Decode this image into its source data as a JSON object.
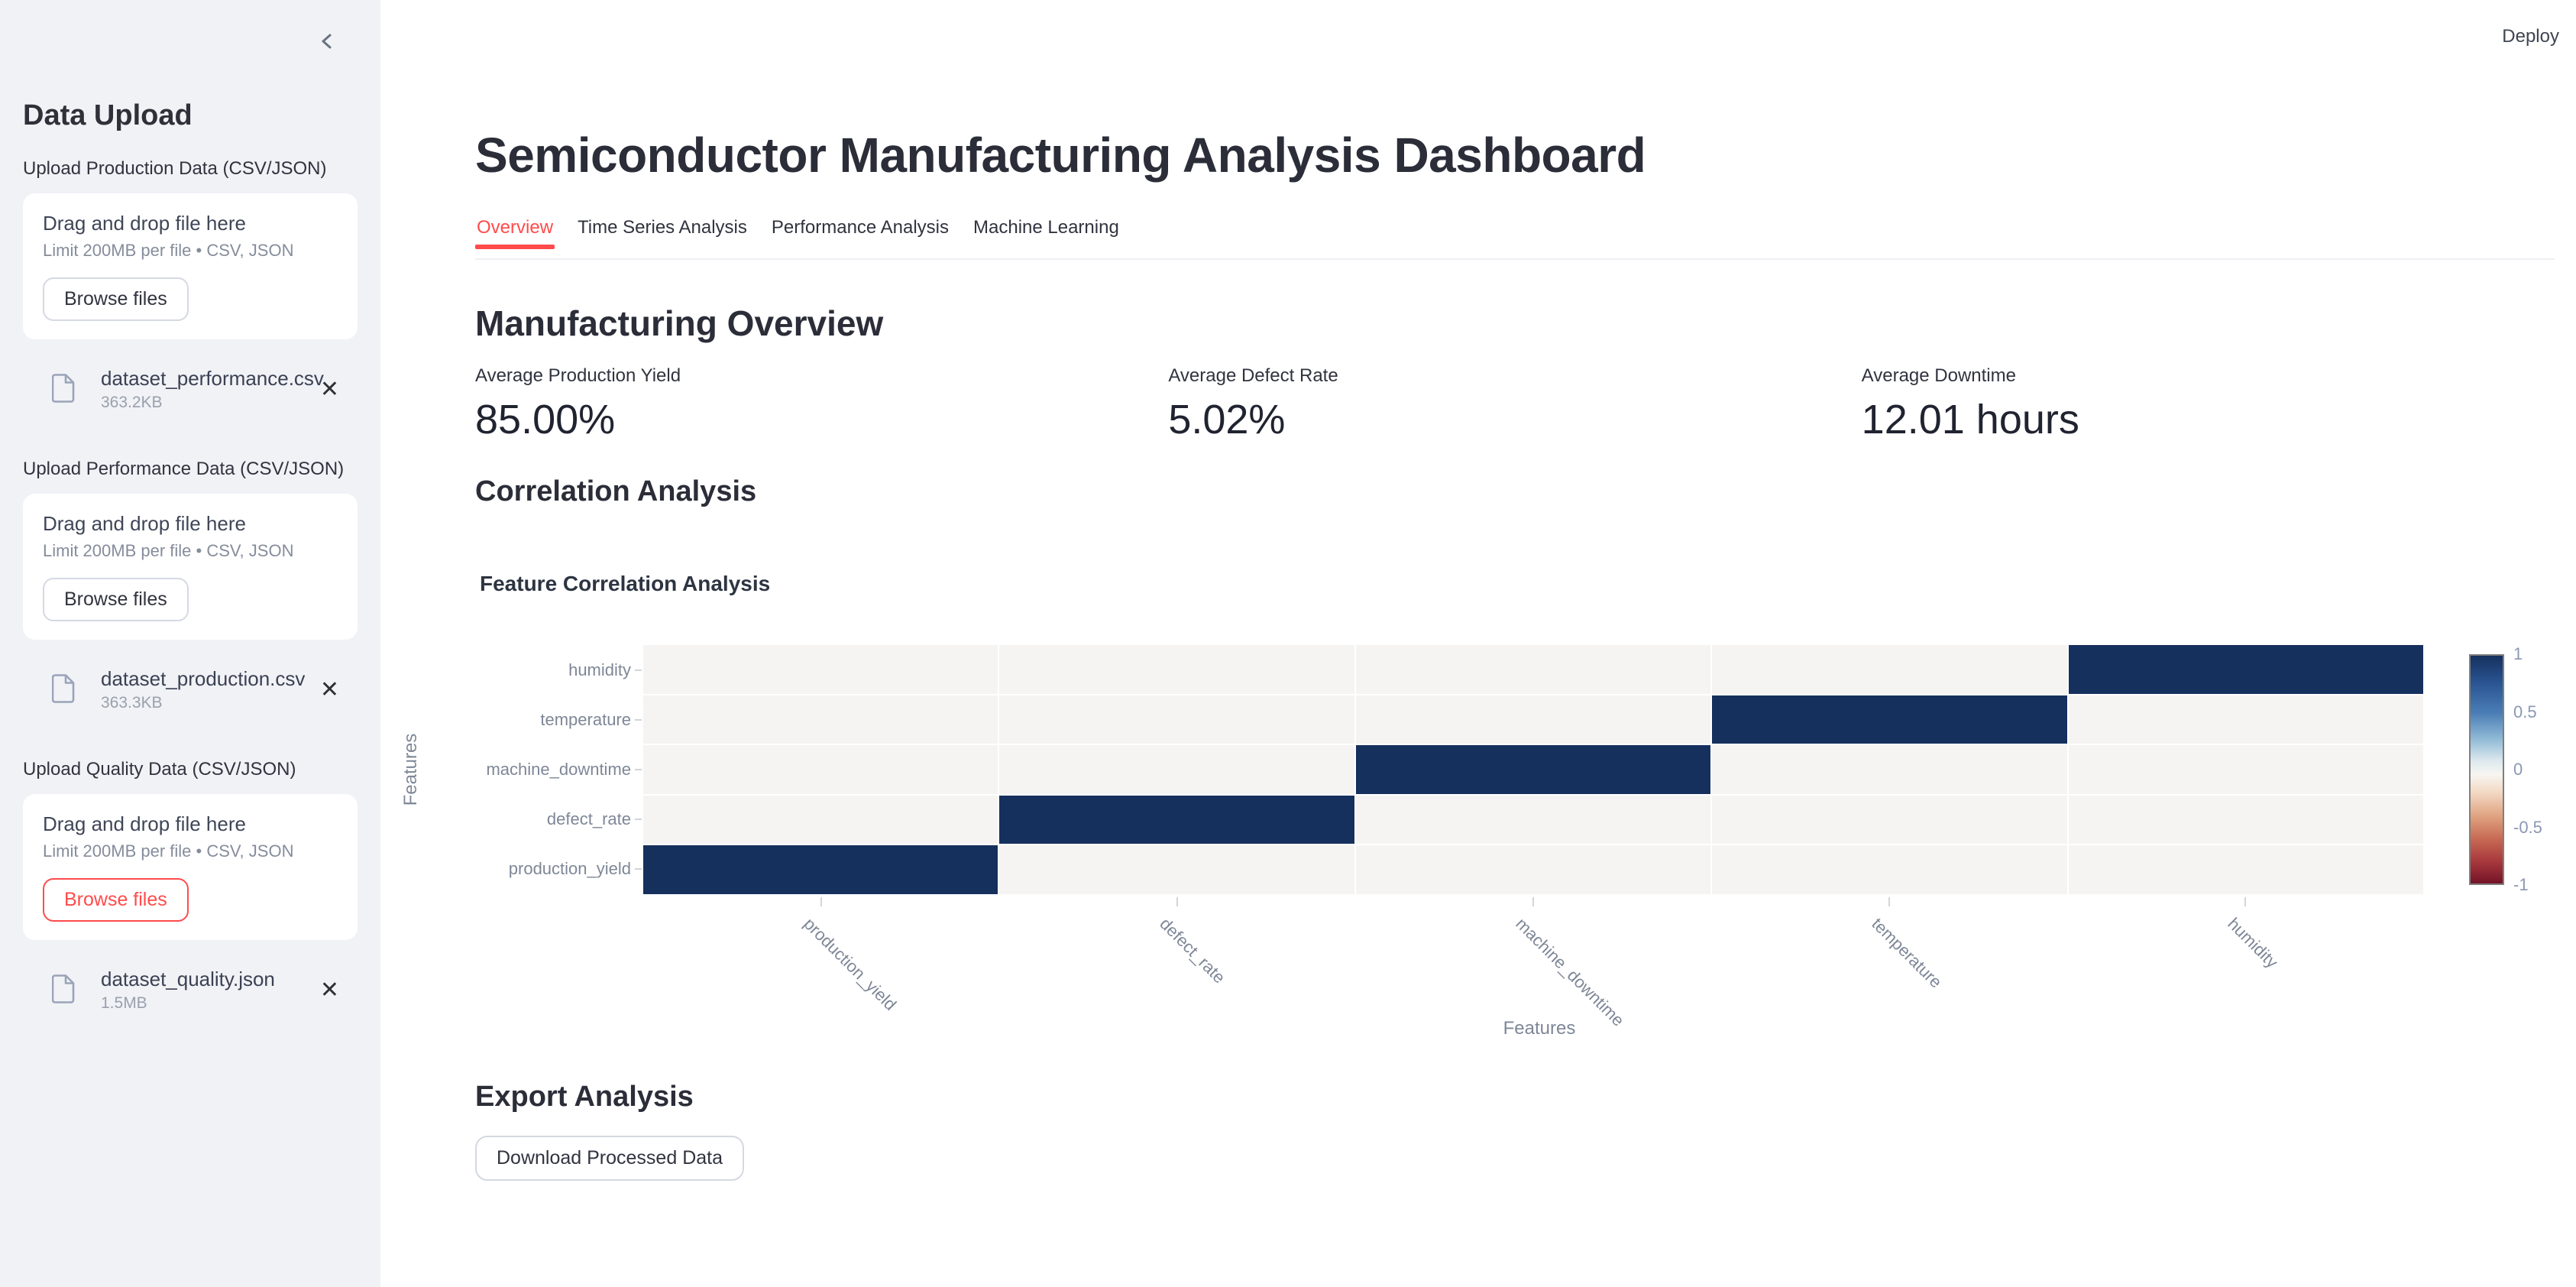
{
  "header": {
    "deploy_label": "Deploy"
  },
  "icons": {
    "collapse": "chevron-left-icon",
    "uploaded_file": "file-icon",
    "remove_file": "close-icon"
  },
  "sidebar": {
    "title": "Data Upload",
    "sections": [
      {
        "label": "Upload Production Data (CSV/JSON)",
        "dropzone_title": "Drag and drop file here",
        "dropzone_hint": "Limit 200MB per file • CSV, JSON",
        "browse_label": "Browse files",
        "browse_variant": "default",
        "file": {
          "name": "dataset_performance.csv",
          "size": "363.2KB"
        }
      },
      {
        "label": "Upload Performance Data (CSV/JSON)",
        "dropzone_title": "Drag and drop file here",
        "dropzone_hint": "Limit 200MB per file • CSV, JSON",
        "browse_label": "Browse files",
        "browse_variant": "default",
        "file": {
          "name": "dataset_production.csv",
          "size": "363.3KB"
        }
      },
      {
        "label": "Upload Quality Data (CSV/JSON)",
        "dropzone_title": "Drag and drop file here",
        "dropzone_hint": "Limit 200MB per file • CSV, JSON",
        "browse_label": "Browse files",
        "browse_variant": "primary",
        "file": {
          "name": "dataset_quality.json",
          "size": "1.5MB"
        }
      }
    ]
  },
  "main": {
    "title": "Semiconductor Manufacturing Analysis Dashboard",
    "tabs": [
      {
        "label": "Overview",
        "active": true
      },
      {
        "label": "Time Series Analysis",
        "active": false
      },
      {
        "label": "Performance Analysis",
        "active": false
      },
      {
        "label": "Machine Learning",
        "active": false
      }
    ],
    "overview": {
      "heading": "Manufacturing Overview",
      "metrics": [
        {
          "label": "Average Production Yield",
          "value": "85.00%"
        },
        {
          "label": "Average Defect Rate",
          "value": "5.02%"
        },
        {
          "label": "Average Downtime",
          "value": "12.01 hours"
        }
      ]
    },
    "correlation": {
      "heading": "Correlation Analysis"
    },
    "export": {
      "heading": "Export Analysis",
      "download_label": "Download Processed Data"
    }
  },
  "chart_data": {
    "type": "heatmap",
    "title": "Feature Correlation Analysis",
    "xlabel": "Features",
    "ylabel": "Features",
    "x_categories": [
      "production_yield",
      "defect_rate",
      "machine_downtime",
      "temperature",
      "humidity"
    ],
    "y_categories": [
      "humidity",
      "temperature",
      "machine_downtime",
      "defect_rate",
      "production_yield"
    ],
    "matrix": [
      [
        0,
        0,
        0,
        0,
        1
      ],
      [
        0,
        0,
        0,
        1,
        0
      ],
      [
        0,
        0,
        1,
        0,
        0
      ],
      [
        0,
        1,
        0,
        0,
        0
      ],
      [
        1,
        0,
        0,
        0,
        0
      ]
    ],
    "colorscale": {
      "positive_max": "#16305e",
      "zero": "#f5f4f2",
      "negative_max": "#6b0f22"
    },
    "colorbar": {
      "ticks": [
        1,
        0.5,
        0,
        -0.5,
        -1
      ],
      "range": [
        -1,
        1
      ],
      "position": "right"
    },
    "grid": false,
    "accent_color": "#ff4b4b"
  }
}
